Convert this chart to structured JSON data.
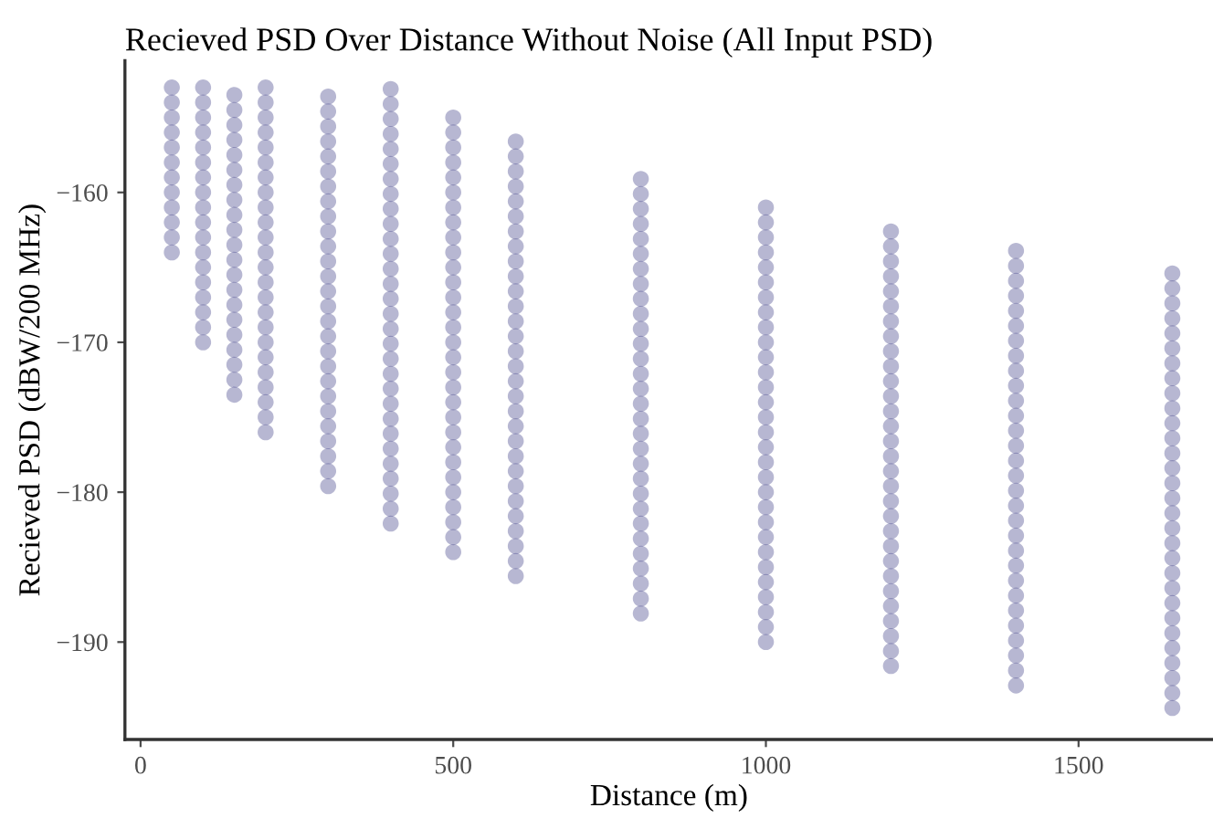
{
  "chart_data": {
    "type": "scatter",
    "title": "Recieved PSD Over Distance Without Noise (All Input PSD)",
    "xlabel": "Distance (m)",
    "ylabel": "Recieved PSD (dBW/200 MHz)",
    "x": [
      50,
      100,
      150,
      200,
      300,
      400,
      500,
      600,
      800,
      1000,
      1200,
      1400,
      1650
    ],
    "xlim": [
      -25,
      1715
    ],
    "ylim": [
      -196.5,
      -151.2
    ],
    "xticks": [
      0,
      500,
      1000,
      1500
    ],
    "yticks": [
      {
        "value": -190,
        "label": "−190"
      },
      {
        "value": -180,
        "label": "−180"
      },
      {
        "value": -170,
        "label": "−170"
      },
      {
        "value": -160,
        "label": "−160"
      }
    ],
    "grid": false,
    "marker": "circle",
    "series": [
      {
        "color": "#4b4b8f",
        "values": [
          -164,
          -170,
          -173.5,
          -176,
          -179.6,
          -182.1,
          -184,
          -185.6,
          -188.1,
          -190,
          -191.6,
          -192.9,
          -194.4
        ]
      },
      {
        "color": "#4b4b8f",
        "values": [
          -163,
          -169,
          -172.5,
          -175,
          -178.6,
          -181.1,
          -183,
          -184.6,
          -187.1,
          -189,
          -190.6,
          -191.9,
          -193.4
        ]
      },
      {
        "color": "#4b4b8f",
        "values": [
          -162,
          -168,
          -171.5,
          -174,
          -177.6,
          -180.1,
          -182,
          -183.6,
          -186.1,
          -188,
          -189.6,
          -190.9,
          -192.4
        ]
      },
      {
        "color": "#4b4b8f",
        "values": [
          -161,
          -167,
          -170.5,
          -173,
          -176.6,
          -179.1,
          -181,
          -182.6,
          -185.1,
          -187,
          -188.6,
          -189.9,
          -191.4
        ]
      },
      {
        "color": "#4b4b8f",
        "values": [
          -160,
          -166,
          -169.5,
          -172,
          -175.6,
          -178.1,
          -180,
          -181.6,
          -184.1,
          -186,
          -187.6,
          -188.9,
          -190.4
        ]
      },
      {
        "color": "#4b4b8f",
        "values": [
          -159,
          -165,
          -168.5,
          -171,
          -174.6,
          -177.1,
          -179,
          -180.6,
          -183.1,
          -185,
          -186.6,
          -187.9,
          -189.4
        ]
      },
      {
        "color": "#4b4b8f",
        "values": [
          -158,
          -164,
          -167.5,
          -170,
          -173.6,
          -176.1,
          -178,
          -179.6,
          -182.1,
          -184,
          -185.6,
          -186.9,
          -188.4
        ]
      },
      {
        "color": "#4b4b8f",
        "values": [
          -157,
          -163,
          -166.5,
          -169,
          -172.6,
          -175.1,
          -177,
          -178.6,
          -181.1,
          -183,
          -184.6,
          -185.9,
          -187.4
        ]
      },
      {
        "color": "#4b4b8f",
        "values": [
          -156,
          -162,
          -165.5,
          -168,
          -171.6,
          -174.1,
          -176,
          -177.6,
          -180.1,
          -182,
          -183.6,
          -184.9,
          -186.4
        ]
      },
      {
        "color": "#4b4b8f",
        "values": [
          -155,
          -161,
          -164.5,
          -167,
          -170.6,
          -173.1,
          -175,
          -176.6,
          -179.1,
          -181,
          -182.6,
          -183.9,
          -185.4
        ]
      },
      {
        "color": "#4b4b8f",
        "values": [
          -154,
          -160,
          -163.5,
          -166,
          -169.6,
          -172.1,
          -174,
          -175.6,
          -178.1,
          -180,
          -181.6,
          -182.9,
          -184.4
        ]
      },
      {
        "color": "#4b4b8f",
        "values": [
          -153,
          -159,
          -162.5,
          -165,
          -168.6,
          -171.1,
          -173,
          -174.6,
          -177.1,
          -179,
          -180.6,
          -181.9,
          -183.4
        ]
      },
      {
        "color": "#4b4b8f",
        "values": [
          null,
          -158,
          -161.5,
          -164,
          -167.6,
          -170.1,
          -172,
          -173.6,
          -176.1,
          -178,
          -179.6,
          -180.9,
          -182.4
        ]
      },
      {
        "color": "#4b4b8f",
        "values": [
          null,
          -157,
          -160.5,
          -163,
          -166.6,
          -169.1,
          -171,
          -172.6,
          -175.1,
          -177,
          -178.6,
          -179.9,
          -181.4
        ]
      },
      {
        "color": "#4b4b8f",
        "values": [
          null,
          -156,
          -159.5,
          -162,
          -165.6,
          -168.1,
          -170,
          -171.6,
          -174.1,
          -176,
          -177.6,
          -178.9,
          -180.4
        ]
      },
      {
        "color": "#4b4b8f",
        "values": [
          null,
          -155,
          -158.5,
          -161,
          -164.6,
          -167.1,
          -169,
          -170.6,
          -173.1,
          -175,
          -176.6,
          -177.9,
          -179.4
        ]
      },
      {
        "color": "#4b4b8f",
        "values": [
          null,
          -154,
          -157.5,
          -160,
          -163.6,
          -166.1,
          -168,
          -169.6,
          -172.1,
          -174,
          -175.6,
          -176.9,
          -178.4
        ]
      },
      {
        "color": "#4b4b8f",
        "values": [
          null,
          -153,
          -156.5,
          -159,
          -162.6,
          -165.1,
          -167,
          -168.6,
          -171.1,
          -173,
          -174.6,
          -175.9,
          -177.4
        ]
      },
      {
        "color": "#4b4b8f",
        "values": [
          null,
          null,
          -155.5,
          -158,
          -161.6,
          -164.1,
          -166,
          -167.6,
          -170.1,
          -172,
          -173.6,
          -174.9,
          -176.4
        ]
      },
      {
        "color": "#4b4b8f",
        "values": [
          null,
          null,
          -154.5,
          -157,
          -160.6,
          -163.1,
          -165,
          -166.6,
          -169.1,
          -171,
          -172.6,
          -173.9,
          -175.4
        ]
      },
      {
        "color": "#4b4b8f",
        "values": [
          null,
          null,
          -153.5,
          -156,
          -159.6,
          -162.1,
          -164,
          -165.6,
          -168.1,
          -170,
          -171.6,
          -172.9,
          -174.4
        ]
      },
      {
        "color": "#4b4b8f",
        "values": [
          null,
          null,
          null,
          -155,
          -158.6,
          -161.1,
          -163,
          -164.6,
          -167.1,
          -169,
          -170.6,
          -171.9,
          -173.4
        ]
      },
      {
        "color": "#4b4b8f",
        "values": [
          null,
          null,
          null,
          -154,
          -157.6,
          -160.1,
          -162,
          -163.6,
          -166.1,
          -168,
          -169.6,
          -170.9,
          -172.4
        ]
      },
      {
        "color": "#4b4b8f",
        "values": [
          null,
          null,
          null,
          -153,
          -156.6,
          -159.1,
          -161,
          -162.6,
          -165.1,
          -167,
          -168.6,
          -169.9,
          -171.4
        ]
      },
      {
        "color": "#4b4b8f",
        "values": [
          null,
          null,
          null,
          null,
          -155.6,
          -158.1,
          -160,
          -161.6,
          -164.1,
          -166,
          -167.6,
          -168.9,
          -170.4
        ]
      },
      {
        "color": "#4b4b8f",
        "values": [
          null,
          null,
          null,
          null,
          -154.6,
          -157.1,
          -159,
          -160.6,
          -163.1,
          -165,
          -166.6,
          -167.9,
          -169.4
        ]
      },
      {
        "color": "#4b4b8f",
        "values": [
          null,
          null,
          null,
          null,
          -153.6,
          -156.1,
          -158,
          -159.6,
          -162.1,
          -164,
          -165.6,
          -166.9,
          -168.4
        ]
      },
      {
        "color": "#4b4b8f",
        "values": [
          null,
          null,
          null,
          null,
          null,
          -155.1,
          -157,
          -158.6,
          -161.1,
          -163,
          -164.6,
          -165.9,
          -167.4
        ]
      },
      {
        "color": "#4b4b8f",
        "values": [
          null,
          null,
          null,
          null,
          null,
          -154.1,
          -156,
          -157.6,
          -160.1,
          -162,
          -163.6,
          -164.9,
          -166.4
        ]
      },
      {
        "color": "#4b4b8f",
        "values": [
          null,
          null,
          null,
          null,
          null,
          -153.1,
          -155,
          -156.6,
          -159.1,
          -161,
          -162.6,
          -163.9,
          -165.4
        ]
      }
    ]
  }
}
